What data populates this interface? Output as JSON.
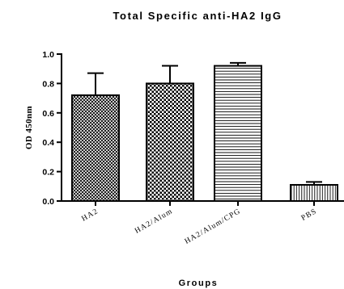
{
  "chart_data": {
    "type": "bar",
    "title": "Total Specific anti-HA2 IgG",
    "xlabel": "Groups",
    "ylabel": "OD 450nm",
    "ylim": [
      0,
      1.0
    ],
    "yticks": [
      "0.0",
      "0.2",
      "0.4",
      "0.6",
      "0.8",
      "1.0"
    ],
    "categories": [
      "HA2",
      "HA2/Alum",
      "HA2/Alum/CPG",
      "PBS"
    ],
    "values": [
      0.72,
      0.8,
      0.92,
      0.11
    ],
    "error_upper": [
      0.15,
      0.12,
      0.02,
      0.02
    ],
    "patterns": [
      "crosshatch",
      "checkerboard",
      "horizontal-lines",
      "vertical-lines"
    ],
    "grid": false,
    "legend": "none"
  }
}
